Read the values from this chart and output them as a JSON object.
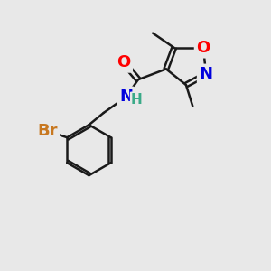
{
  "background_color": "#e8e8e8",
  "bond_color": "#1a1a1a",
  "bond_width": 1.8,
  "atom_colors": {
    "O": "#ff0000",
    "N_amide": "#0000dd",
    "N_isoxazole": "#0000dd",
    "Br": "#c87820",
    "C": "#1a1a1a",
    "H": "#3aaa88"
  },
  "font_size_atom": 13,
  "font_size_small": 10,
  "font_size_methyl": 11
}
